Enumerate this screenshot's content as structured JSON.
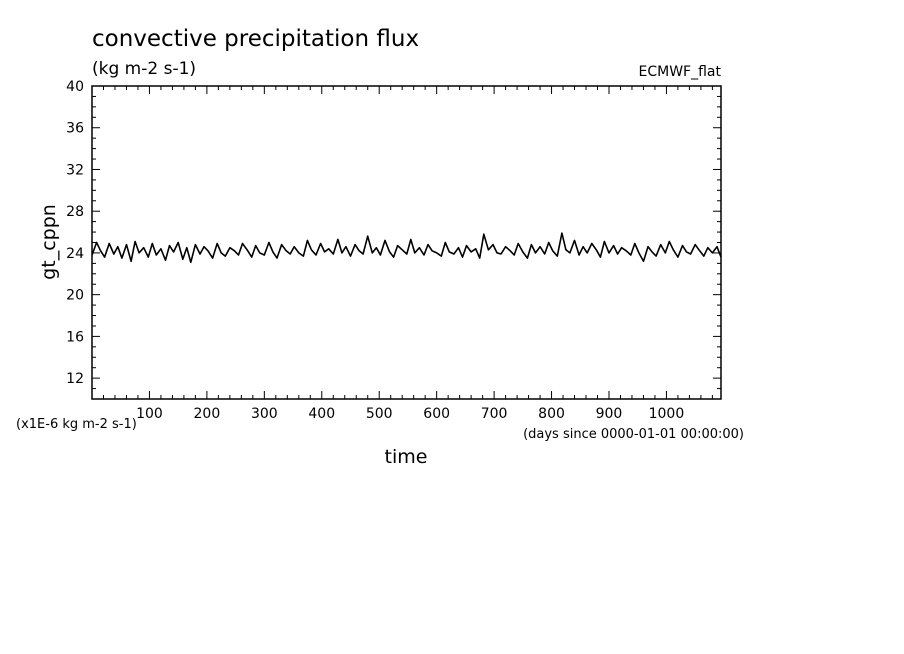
{
  "chart_data": {
    "type": "line",
    "title": "convective precipitation flux",
    "subtitle": "(kg m-2 s-1)",
    "tag": "ECMWF_flat",
    "xlabel": "time",
    "x_units": "(days since 0000-01-01 00:00:00)",
    "ylabel": "gt_cppn",
    "y_scale_note": "(x1E-6 kg m-2 s-1)",
    "xlim": [
      0,
      1095
    ],
    "ylim": [
      10,
      40
    ],
    "x_ticks": [
      100,
      200,
      300,
      400,
      500,
      600,
      700,
      800,
      900,
      1000
    ],
    "y_ticks": [
      12,
      16,
      20,
      24,
      28,
      32,
      36,
      40
    ],
    "grid": false,
    "series": [
      {
        "x": [
          0,
          8,
          15,
          22,
          30,
          38,
          45,
          52,
          60,
          68,
          75,
          82,
          90,
          98,
          105,
          112,
          120,
          128,
          135,
          142,
          150,
          158,
          165,
          172,
          180,
          188,
          195,
          202,
          210,
          218,
          225,
          232,
          240,
          248,
          255,
          262,
          270,
          278,
          285,
          292,
          300,
          308,
          315,
          322,
          330,
          338,
          345,
          352,
          360,
          368,
          375,
          382,
          390,
          398,
          405,
          412,
          420,
          428,
          435,
          442,
          450,
          458,
          465,
          472,
          480,
          488,
          495,
          502,
          510,
          518,
          525,
          532,
          540,
          548,
          555,
          562,
          570,
          578,
          585,
          592,
          600,
          608,
          615,
          622,
          630,
          638,
          645,
          652,
          660,
          668,
          675,
          682,
          690,
          698,
          705,
          712,
          720,
          728,
          735,
          742,
          750,
          758,
          765,
          772,
          780,
          788,
          795,
          802,
          810,
          818,
          825,
          832,
          840,
          848,
          855,
          862,
          870,
          878,
          885,
          892,
          900,
          908,
          915,
          922,
          930,
          938,
          945,
          952,
          960,
          968,
          975,
          982,
          990,
          998,
          1005,
          1012,
          1020,
          1028,
          1035,
          1042,
          1050,
          1058,
          1065,
          1072,
          1080,
          1088,
          1095
        ],
        "y": [
          23.8,
          25.0,
          24.2,
          23.6,
          24.9,
          23.9,
          24.6,
          23.5,
          24.8,
          23.2,
          25.1,
          24.0,
          24.5,
          23.6,
          24.9,
          23.8,
          24.4,
          23.3,
          24.7,
          24.1,
          25.0,
          23.4,
          24.5,
          23.1,
          24.8,
          23.9,
          24.6,
          24.2,
          23.5,
          24.9,
          24.0,
          23.7,
          24.5,
          24.2,
          23.8,
          24.9,
          24.3,
          23.6,
          24.7,
          24.0,
          23.8,
          25.0,
          24.1,
          23.5,
          24.8,
          24.2,
          23.9,
          24.6,
          24.0,
          23.7,
          25.2,
          24.3,
          23.8,
          24.9,
          24.1,
          24.4,
          23.9,
          25.3,
          24.0,
          24.6,
          23.7,
          24.8,
          24.2,
          23.9,
          25.6,
          24.0,
          24.5,
          23.8,
          25.2,
          24.1,
          23.6,
          24.7,
          24.3,
          23.9,
          25.3,
          24.0,
          24.5,
          23.8,
          24.8,
          24.2,
          24.0,
          23.7,
          25.0,
          24.1,
          23.9,
          24.5,
          23.6,
          24.7,
          24.1,
          24.4,
          23.5,
          25.8,
          24.3,
          24.8,
          24.0,
          23.9,
          24.6,
          24.2,
          23.8,
          24.9,
          24.1,
          23.5,
          24.8,
          24.0,
          24.6,
          23.9,
          25.0,
          24.2,
          23.7,
          25.9,
          24.3,
          24.0,
          25.2,
          23.8,
          24.6,
          24.0,
          24.9,
          24.3,
          23.6,
          25.1,
          24.0,
          24.7,
          23.9,
          24.5,
          24.2,
          23.8,
          24.9,
          24.0,
          23.2,
          24.6,
          24.1,
          23.7,
          24.8,
          24.0,
          25.1,
          24.3,
          23.6,
          24.7,
          24.1,
          23.9,
          24.8,
          24.2,
          23.7,
          24.5,
          24.0,
          24.6,
          23.6
        ]
      }
    ]
  }
}
